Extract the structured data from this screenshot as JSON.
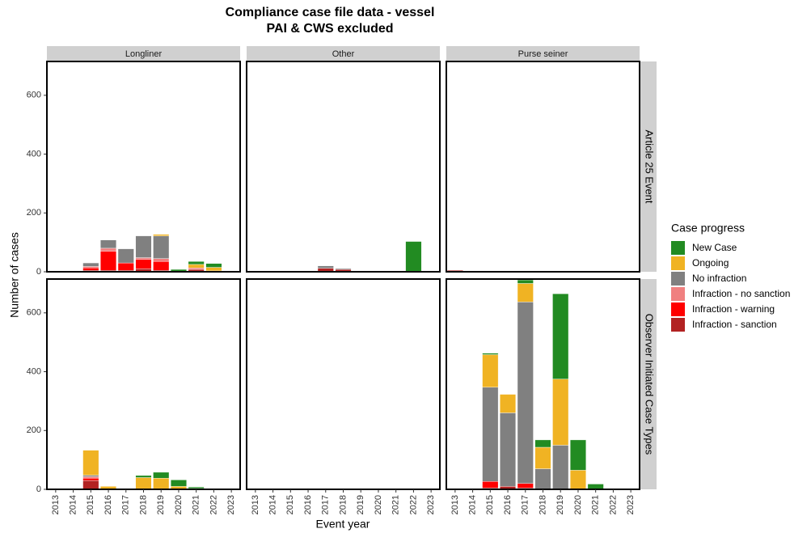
{
  "chart_data": {
    "type": "bar",
    "stacked": true,
    "title": "Compliance case file data - vessel",
    "subtitle": "PAI & CWS excluded",
    "x_label": "Event year",
    "y_label": "Number of cases",
    "legend_title": "Case progress",
    "categories": [
      "2013",
      "2014",
      "2015",
      "2016",
      "2017",
      "2018",
      "2019",
      "2020",
      "2021",
      "2022",
      "2023"
    ],
    "facet_columns": [
      "Longliner",
      "Other",
      "Purse seiner"
    ],
    "facet_rows": [
      "Article 25 Event",
      "Observer Initiated Case Types"
    ],
    "ylim": [
      0,
      715
    ],
    "yticks": [
      0,
      200,
      400,
      600
    ],
    "series": [
      {
        "name": "New Case",
        "color": "#228b22"
      },
      {
        "name": "Ongoing",
        "color": "#f0b323"
      },
      {
        "name": "No infraction",
        "color": "#808080"
      },
      {
        "name": "Infraction - no sanction",
        "color": "#f08080"
      },
      {
        "name": "Infraction - warning",
        "color": "#ff0000"
      },
      {
        "name": "Infraction - sanction",
        "color": "#b22222"
      }
    ],
    "panels": [
      {
        "values": [
          [
            0,
            0,
            0,
            0,
            0,
            0,
            0,
            6,
            10,
            13,
            0
          ],
          [
            0,
            0,
            0,
            0,
            0,
            0,
            5,
            0,
            12,
            12,
            0
          ],
          [
            0,
            0,
            12,
            28,
            48,
            74,
            77,
            2,
            0,
            0,
            0
          ],
          [
            0,
            0,
            5,
            10,
            0,
            6,
            10,
            0,
            5,
            0,
            0
          ],
          [
            0,
            0,
            8,
            65,
            25,
            32,
            30,
            0,
            0,
            0,
            0
          ],
          [
            0,
            0,
            5,
            5,
            5,
            10,
            5,
            0,
            8,
            3,
            0
          ]
        ]
      },
      {
        "values": [
          [
            0,
            0,
            0,
            0,
            0,
            0,
            0,
            0,
            0,
            103,
            0
          ],
          [
            0,
            0,
            0,
            0,
            0,
            0,
            0,
            0,
            0,
            0,
            0
          ],
          [
            0,
            0,
            0,
            0,
            8,
            3,
            0,
            0,
            0,
            0,
            0
          ],
          [
            0,
            0,
            0,
            0,
            0,
            0,
            0,
            0,
            0,
            0,
            0
          ],
          [
            0,
            0,
            0,
            0,
            0,
            0,
            0,
            0,
            0,
            0,
            0
          ],
          [
            0,
            0,
            0,
            0,
            12,
            8,
            0,
            0,
            0,
            0,
            0
          ]
        ]
      },
      {
        "values": [
          [
            0,
            0,
            0,
            0,
            0,
            0,
            0,
            0,
            0,
            0,
            0
          ],
          [
            0,
            0,
            0,
            0,
            0,
            0,
            0,
            0,
            0,
            0,
            0
          ],
          [
            0,
            0,
            0,
            0,
            0,
            0,
            0,
            0,
            0,
            0,
            0
          ],
          [
            0,
            0,
            0,
            0,
            0,
            0,
            0,
            0,
            0,
            0,
            0
          ],
          [
            0,
            0,
            0,
            0,
            0,
            0,
            0,
            0,
            0,
            0,
            0
          ],
          [
            5,
            0,
            0,
            0,
            0,
            0,
            0,
            0,
            0,
            0,
            0
          ]
        ]
      },
      {
        "values": [
          [
            0,
            0,
            0,
            0,
            0,
            7,
            20,
            22,
            5,
            0,
            0
          ],
          [
            0,
            0,
            85,
            10,
            0,
            40,
            38,
            10,
            3,
            0,
            0
          ],
          [
            0,
            0,
            5,
            0,
            0,
            0,
            0,
            0,
            0,
            0,
            0
          ],
          [
            0,
            0,
            5,
            0,
            0,
            0,
            0,
            0,
            0,
            0,
            0
          ],
          [
            0,
            0,
            8,
            0,
            0,
            0,
            0,
            0,
            0,
            0,
            0
          ],
          [
            0,
            0,
            30,
            0,
            0,
            0,
            0,
            0,
            0,
            0,
            0
          ]
        ]
      },
      {
        "values": [
          [
            0,
            0,
            0,
            0,
            0,
            0,
            0,
            0,
            0,
            0,
            0
          ],
          [
            0,
            0,
            0,
            0,
            0,
            0,
            0,
            0,
            0,
            0,
            0
          ],
          [
            0,
            0,
            0,
            0,
            0,
            0,
            0,
            0,
            0,
            0,
            0
          ],
          [
            0,
            0,
            0,
            0,
            0,
            0,
            0,
            0,
            0,
            0,
            0
          ],
          [
            0,
            0,
            0,
            0,
            0,
            0,
            0,
            0,
            0,
            0,
            0
          ],
          [
            0,
            0,
            0,
            0,
            0,
            0,
            0,
            0,
            0,
            0,
            0
          ]
        ]
      },
      {
        "values": [
          [
            0,
            0,
            5,
            0,
            12,
            25,
            290,
            103,
            18,
            0,
            0
          ],
          [
            0,
            0,
            111,
            63,
            63,
            73,
            225,
            65,
            0,
            0,
            0
          ],
          [
            0,
            0,
            320,
            250,
            617,
            70,
            150,
            0,
            0,
            0,
            0
          ],
          [
            0,
            0,
            0,
            0,
            0,
            0,
            0,
            0,
            0,
            0,
            0
          ],
          [
            0,
            0,
            22,
            0,
            15,
            0,
            0,
            0,
            0,
            0,
            0
          ],
          [
            0,
            0,
            5,
            10,
            5,
            0,
            0,
            0,
            0,
            0,
            0
          ]
        ]
      }
    ]
  }
}
